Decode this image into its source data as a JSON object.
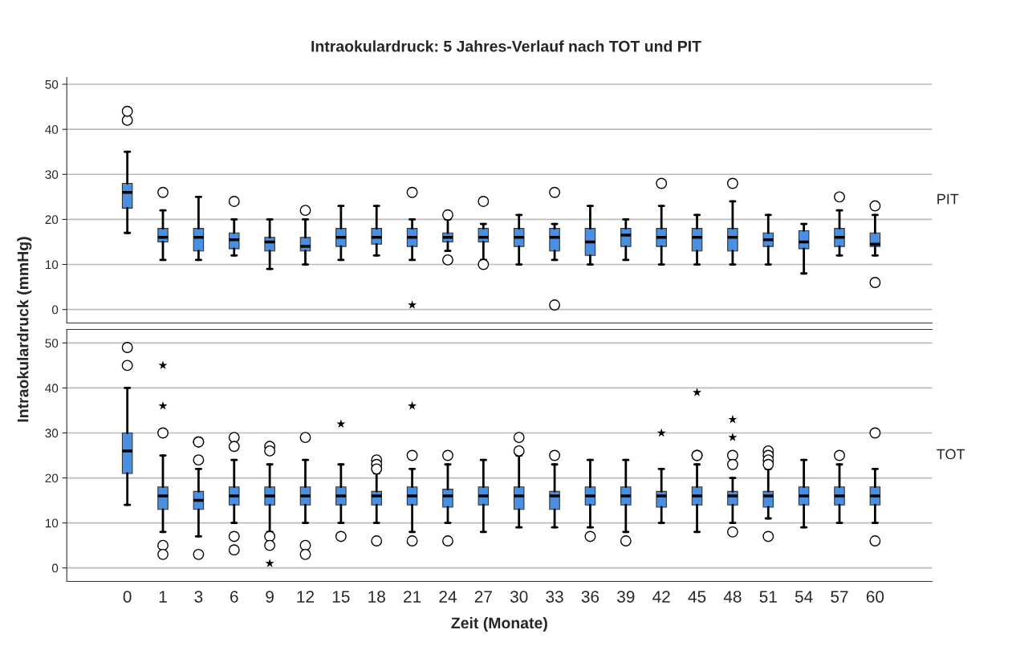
{
  "chart_data": [
    {
      "type": "box",
      "title": "Intraokulardruck: 5 Jahres-Verlauf nach TOT und PIT",
      "ylabel": "Intraokulardruck (mmHg)",
      "annotations": [
        "PIT"
      ],
      "categories": [
        "0",
        "1",
        "3",
        "6",
        "9",
        "12",
        "15",
        "18",
        "21",
        "24",
        "27",
        "30",
        "33",
        "36",
        "39",
        "42",
        "45",
        "48",
        "51",
        "54",
        "57",
        "60"
      ],
      "ylim": [
        -3,
        51.5
      ],
      "yticks": [
        0,
        10,
        20,
        30,
        40,
        50
      ],
      "grid": "y",
      "tick_labels": "y",
      "series": [
        {
          "color": "#4a90e2",
          "boxes": [
            {
              "low": 17,
              "q1": 22.5,
              "median": 26,
              "q3": 28,
              "high": 35,
              "outliers": [
                42,
                44
              ]
            },
            {
              "low": 11,
              "q1": 15,
              "median": 16,
              "q3": 18,
              "high": 22,
              "outliers": [
                26
              ]
            },
            {
              "low": 11,
              "q1": 13,
              "median": 16,
              "q3": 18,
              "high": 25
            },
            {
              "low": 12,
              "q1": 13.5,
              "median": 15.5,
              "q3": 17,
              "high": 20,
              "outliers": [
                24
              ]
            },
            {
              "low": 9,
              "q1": 13,
              "median": 15,
              "q3": 16,
              "high": 20
            },
            {
              "low": 10,
              "q1": 13,
              "median": 14,
              "q3": 16,
              "high": 20,
              "outliers": [
                22
              ]
            },
            {
              "low": 11,
              "q1": 14,
              "median": 16,
              "q3": 18,
              "high": 23
            },
            {
              "low": 12,
              "q1": 14.5,
              "median": 16,
              "q3": 18,
              "high": 23
            },
            {
              "low": 11,
              "q1": 14,
              "median": 16,
              "q3": 18,
              "high": 20,
              "outliers": [
                26
              ]
            },
            {
              "low": 13,
              "q1": 15,
              "median": 16,
              "q3": 17,
              "high": 20,
              "outliers": [
                21,
                11
              ]
            },
            {
              "low": 11,
              "q1": 15,
              "median": 16,
              "q3": 18,
              "high": 19,
              "outliers": [
                24,
                10
              ]
            },
            {
              "low": 10,
              "q1": 14,
              "median": 16,
              "q3": 18,
              "high": 21
            },
            {
              "low": 11,
              "q1": 13,
              "median": 16,
              "q3": 18,
              "high": 19,
              "outliers": [
                26,
                1
              ]
            },
            {
              "low": 10,
              "q1": 12,
              "median": 15,
              "q3": 18,
              "high": 23
            },
            {
              "low": 11,
              "q1": 14,
              "median": 16.5,
              "q3": 18,
              "high": 20
            },
            {
              "low": 10,
              "q1": 14,
              "median": 16,
              "q3": 18,
              "high": 23,
              "outliers": [
                28
              ]
            },
            {
              "low": 10,
              "q1": 13,
              "median": 16,
              "q3": 18,
              "high": 21
            },
            {
              "low": 10,
              "q1": 13,
              "median": 16,
              "q3": 18,
              "high": 24,
              "outliers": [
                28
              ]
            },
            {
              "low": 10,
              "q1": 14,
              "median": 15.5,
              "q3": 17,
              "high": 21
            },
            {
              "low": 8,
              "q1": 13.5,
              "median": 15,
              "q3": 17.5,
              "high": 19
            },
            {
              "low": 12,
              "q1": 14,
              "median": 16,
              "q3": 18,
              "high": 22,
              "outliers": [
                25
              ]
            },
            {
              "low": 12,
              "q1": 14,
              "median": 14.5,
              "q3": 17,
              "high": 21,
              "outliers": [
                23,
                6
              ]
            }
          ]
        },
        {
          "type": "scatter",
          "color": "#000000",
          "marker": "star",
          "x": [
            "21"
          ],
          "values": [
            1
          ]
        }
      ]
    },
    {
      "type": "box",
      "xlabel": "Zeit (Monate)",
      "annotations": [
        "TOT"
      ],
      "categories": [
        "0",
        "1",
        "3",
        "6",
        "9",
        "12",
        "15",
        "18",
        "21",
        "24",
        "27",
        "30",
        "33",
        "36",
        "39",
        "42",
        "45",
        "48",
        "51",
        "54",
        "57",
        "60"
      ],
      "ylim": [
        -3,
        53
      ],
      "yticks": [
        0,
        10,
        20,
        30,
        40,
        50
      ],
      "grid": "y",
      "series": [
        {
          "color": "#4a90e2",
          "boxes": [
            {
              "low": 14,
              "q1": 21,
              "median": 26,
              "q3": 30,
              "high": 40,
              "outliers": [
                49,
                45
              ]
            },
            {
              "low": 8,
              "q1": 13,
              "median": 16,
              "q3": 18,
              "high": 25,
              "outliers": [
                30,
                5,
                3
              ]
            },
            {
              "low": 7,
              "q1": 13,
              "median": 15,
              "q3": 17,
              "high": 22,
              "outliers": [
                28,
                28,
                24,
                3
              ]
            },
            {
              "low": 10,
              "q1": 14,
              "median": 16,
              "q3": 18,
              "high": 24,
              "outliers": [
                29,
                27,
                7,
                4
              ]
            },
            {
              "low": 8,
              "q1": 14,
              "median": 16,
              "q3": 18,
              "high": 23,
              "outliers": [
                27,
                26,
                7,
                5
              ]
            },
            {
              "low": 10,
              "q1": 14,
              "median": 16,
              "q3": 18,
              "high": 24,
              "outliers": [
                29,
                5,
                3
              ]
            },
            {
              "low": 10,
              "q1": 14,
              "median": 16,
              "q3": 18,
              "high": 23,
              "outliers": [
                7
              ]
            },
            {
              "low": 10,
              "q1": 14,
              "median": 16,
              "q3": 17,
              "high": 21,
              "outliers": [
                24,
                23,
                22,
                6
              ]
            },
            {
              "low": 8,
              "q1": 14,
              "median": 16,
              "q3": 18,
              "high": 22,
              "outliers": [
                25,
                6
              ]
            },
            {
              "low": 10,
              "q1": 13.5,
              "median": 16,
              "q3": 17.5,
              "high": 23,
              "outliers": [
                25,
                6
              ]
            },
            {
              "low": 8,
              "q1": 14,
              "median": 16,
              "q3": 18,
              "high": 24
            },
            {
              "low": 9,
              "q1": 13,
              "median": 16,
              "q3": 18,
              "high": 25,
              "outliers": [
                29,
                26
              ]
            },
            {
              "low": 9,
              "q1": 13,
              "median": 16,
              "q3": 17,
              "high": 23,
              "outliers": [
                25
              ]
            },
            {
              "low": 9,
              "q1": 14,
              "median": 16,
              "q3": 18,
              "high": 24,
              "outliers": [
                7
              ]
            },
            {
              "low": 8,
              "q1": 14,
              "median": 16,
              "q3": 18,
              "high": 24,
              "outliers": [
                6
              ]
            },
            {
              "low": 10,
              "q1": 13.5,
              "median": 16,
              "q3": 17,
              "high": 22
            },
            {
              "low": 8,
              "q1": 14,
              "median": 16,
              "q3": 18,
              "high": 23,
              "outliers": [
                25,
                25
              ]
            },
            {
              "low": 10,
              "q1": 14,
              "median": 16,
              "q3": 17,
              "high": 20,
              "outliers": [
                25,
                23,
                8
              ]
            },
            {
              "low": 11,
              "q1": 13.5,
              "median": 16,
              "q3": 17,
              "high": 22,
              "outliers": [
                26,
                25,
                24,
                23,
                7
              ]
            },
            {
              "low": 9,
              "q1": 14,
              "median": 16,
              "q3": 18,
              "high": 24
            },
            {
              "low": 10,
              "q1": 14,
              "median": 16,
              "q3": 18,
              "high": 23,
              "outliers": [
                25
              ]
            },
            {
              "low": 10,
              "q1": 14,
              "median": 16,
              "q3": 18,
              "high": 22,
              "outliers": [
                30,
                6
              ]
            }
          ]
        },
        {
          "type": "scatter",
          "color": "#000000",
          "marker": "star",
          "x": [
            "1",
            "1",
            "9",
            "15",
            "21",
            "42",
            "45",
            "48",
            "48"
          ],
          "values": [
            45,
            36,
            1,
            32,
            36,
            30,
            39,
            33,
            29
          ]
        }
      ]
    }
  ]
}
